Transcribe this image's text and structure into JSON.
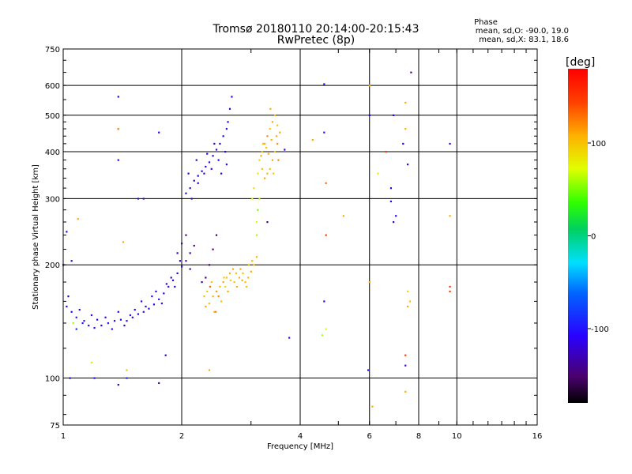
{
  "chart_data": {
    "type": "scatter",
    "title": "Tromsø 20180110 20:14:00-20:15:43",
    "subtitle": "RwPretec (8p)",
    "xlabel": "Frequency [MHz]",
    "ylabel": "Stationary phase Virtual Height [km]",
    "x_scale": "log",
    "y_scale": "log",
    "xlim": [
      1,
      16
    ],
    "ylim": [
      75,
      750
    ],
    "x_ticks": [
      "1",
      "2",
      "4",
      "6",
      "8",
      "10",
      "16"
    ],
    "y_ticks": [
      "75",
      "100",
      "200",
      "300",
      "400",
      "500",
      "600",
      "750"
    ],
    "grid": true,
    "phase_note": {
      "heading": "Phase",
      "line1": "mean, sd,O: -90.0, 19.0",
      "line2": "mean, sd,X:  83.1, 18.6"
    },
    "colorbar": {
      "label": "[deg]",
      "range": [
        -180,
        180
      ],
      "ticks": [
        "100",
        "0",
        "-100"
      ]
    },
    "series": [
      {
        "points": [
          [
            1.02,
            155,
            -110
          ],
          [
            1.05,
            150,
            -105
          ],
          [
            1.08,
            145,
            -100
          ],
          [
            1.12,
            140,
            -100
          ],
          [
            1.16,
            138,
            -110
          ],
          [
            1.2,
            136,
            -105
          ],
          [
            1.25,
            138,
            -110
          ],
          [
            1.3,
            140,
            -100
          ],
          [
            1.35,
            142,
            -105
          ],
          [
            1.4,
            143,
            -110
          ],
          [
            1.45,
            142,
            -100
          ],
          [
            1.5,
            145,
            -105
          ],
          [
            1.55,
            148,
            -110
          ],
          [
            1.6,
            150,
            -100
          ],
          [
            1.65,
            153,
            -105
          ],
          [
            1.7,
            157,
            -110
          ],
          [
            1.75,
            162,
            -100
          ],
          [
            1.8,
            168,
            -110
          ],
          [
            1.85,
            175,
            -120
          ],
          [
            1.9,
            182,
            -115
          ],
          [
            1.95,
            190,
            -125
          ],
          [
            2.0,
            198,
            -120
          ],
          [
            2.05,
            205,
            -130
          ],
          [
            2.1,
            215,
            -135
          ],
          [
            1.03,
            165,
            -120
          ],
          [
            1.1,
            152,
            -110
          ],
          [
            1.18,
            147,
            -100
          ],
          [
            1.28,
            145,
            -105
          ],
          [
            1.38,
            150,
            -110
          ],
          [
            1.48,
            147,
            -105
          ],
          [
            1.58,
            160,
            -110
          ],
          [
            1.68,
            165,
            -105
          ],
          [
            1.78,
            158,
            -100
          ],
          [
            1.88,
            185,
            -120
          ],
          [
            1.98,
            205,
            -130
          ],
          [
            2.0,
            228,
            -140
          ],
          [
            2.05,
            240,
            -150
          ],
          [
            1.08,
            135,
            -90
          ],
          [
            1.13,
            142,
            -95
          ],
          [
            1.22,
            143,
            -110
          ],
          [
            1.33,
            135,
            -105
          ],
          [
            1.43,
            138,
            -110
          ],
          [
            1.52,
            152,
            -110
          ],
          [
            1.62,
            155,
            -120
          ],
          [
            1.72,
            170,
            -115
          ],
          [
            1.83,
            178,
            -125
          ],
          [
            1.92,
            175,
            -120
          ],
          [
            1.95,
            215,
            -130
          ],
          [
            2.1,
            195,
            -140
          ],
          [
            2.15,
            225,
            -150
          ],
          [
            2.05,
            310,
            -120
          ],
          [
            2.1,
            320,
            -125
          ],
          [
            2.15,
            335,
            -130
          ],
          [
            2.2,
            345,
            -120
          ],
          [
            2.25,
            355,
            -125
          ],
          [
            2.3,
            365,
            -110
          ],
          [
            2.35,
            375,
            -115
          ],
          [
            2.4,
            390,
            -120
          ],
          [
            2.45,
            405,
            -110
          ],
          [
            2.5,
            420,
            -115
          ],
          [
            2.55,
            440,
            -120
          ],
          [
            2.6,
            460,
            -110
          ],
          [
            2.62,
            480,
            -115
          ],
          [
            2.65,
            520,
            -120
          ],
          [
            2.68,
            560,
            -110
          ],
          [
            2.12,
            300,
            -125
          ],
          [
            2.2,
            330,
            -115
          ],
          [
            2.28,
            350,
            -120
          ],
          [
            2.38,
            360,
            -110
          ],
          [
            2.48,
            380,
            -115
          ],
          [
            2.52,
            350,
            -125
          ],
          [
            2.58,
            400,
            -120
          ],
          [
            2.6,
            370,
            -115
          ],
          [
            2.42,
            420,
            -120
          ],
          [
            2.32,
            395,
            -110
          ],
          [
            2.18,
            380,
            -130
          ],
          [
            2.08,
            350,
            -125
          ],
          [
            2.25,
            180,
            -130
          ],
          [
            2.3,
            185,
            -140
          ],
          [
            2.35,
            200,
            -145
          ],
          [
            2.4,
            220,
            -150
          ],
          [
            2.45,
            240,
            -155
          ],
          [
            1.0,
            200,
            -150
          ],
          [
            1.02,
            245,
            -120
          ],
          [
            1.38,
            560,
            -120
          ],
          [
            1.38,
            460,
            -120
          ],
          [
            1.38,
            380,
            -110
          ],
          [
            1.55,
            300,
            -120
          ],
          [
            1.6,
            300,
            -130
          ],
          [
            1.75,
            450,
            -110
          ],
          [
            1.2,
            100,
            -100
          ],
          [
            1.38,
            96,
            -130
          ],
          [
            1.45,
            100,
            -90
          ],
          [
            1.75,
            97,
            -140
          ],
          [
            1.82,
            115,
            -120
          ],
          [
            3.3,
            260,
            -140
          ],
          [
            4.6,
            160,
            -110
          ],
          [
            4.6,
            605,
            -110
          ],
          [
            6.0,
            500,
            -110
          ],
          [
            6.8,
            320,
            -110
          ],
          [
            6.8,
            295,
            -110
          ],
          [
            6.9,
            260,
            -110
          ],
          [
            6.9,
            500,
            -110
          ],
          [
            7.0,
            270,
            -110
          ],
          [
            7.4,
            108,
            -120
          ],
          [
            7.5,
            370,
            -120
          ],
          [
            7.65,
            650,
            -140
          ],
          [
            7.3,
            420,
            -110
          ],
          [
            9.6,
            420,
            -110
          ],
          [
            5.95,
            105,
            -110
          ],
          [
            4.6,
            450,
            -100
          ],
          [
            3.65,
            405,
            -110
          ],
          [
            3.75,
            128,
            -100
          ],
          [
            1.04,
            100,
            -120
          ],
          [
            1.05,
            205,
            -130
          ]
        ]
      },
      {
        "points": [
          [
            2.3,
            155,
            110
          ],
          [
            2.35,
            158,
            100
          ],
          [
            2.4,
            165,
            105
          ],
          [
            2.45,
            170,
            115
          ],
          [
            2.5,
            175,
            100
          ],
          [
            2.55,
            180,
            110
          ],
          [
            2.6,
            185,
            100
          ],
          [
            2.65,
            190,
            105
          ],
          [
            2.7,
            195,
            110
          ],
          [
            2.75,
            190,
            100
          ],
          [
            2.8,
            185,
            105
          ],
          [
            2.85,
            182,
            110
          ],
          [
            2.9,
            180,
            100
          ],
          [
            2.95,
            185,
            105
          ],
          [
            3.0,
            192,
            110
          ],
          [
            3.05,
            200,
            100
          ],
          [
            3.1,
            210,
            105
          ],
          [
            2.32,
            170,
            95
          ],
          [
            2.38,
            180,
            100
          ],
          [
            2.42,
            150,
            110
          ],
          [
            2.48,
            165,
            120
          ],
          [
            2.52,
            160,
            100
          ],
          [
            2.58,
            175,
            90
          ],
          [
            2.62,
            170,
            110
          ],
          [
            2.72,
            180,
            100
          ],
          [
            2.82,
            195,
            110
          ],
          [
            2.92,
            175,
            100
          ],
          [
            3.02,
            205,
            105
          ],
          [
            2.28,
            165,
            100
          ],
          [
            2.36,
            175,
            130
          ],
          [
            2.44,
            150,
            120
          ],
          [
            2.56,
            185,
            100
          ],
          [
            2.66,
            182,
            95
          ],
          [
            2.76,
            175,
            110
          ],
          [
            2.86,
            190,
            100
          ],
          [
            2.96,
            200,
            105
          ],
          [
            3.1,
            240,
            60
          ],
          [
            3.1,
            260,
            70
          ],
          [
            3.12,
            280,
            50
          ],
          [
            3.15,
            300,
            60
          ],
          [
            3.12,
            350,
            80
          ],
          [
            3.15,
            380,
            90
          ],
          [
            3.2,
            400,
            100
          ],
          [
            3.25,
            420,
            110
          ],
          [
            3.3,
            440,
            120
          ],
          [
            3.35,
            460,
            100
          ],
          [
            3.4,
            480,
            110
          ],
          [
            3.45,
            500,
            105
          ],
          [
            3.5,
            470,
            100
          ],
          [
            3.55,
            450,
            110
          ],
          [
            3.5,
            420,
            120
          ],
          [
            3.45,
            400,
            100
          ],
          [
            3.4,
            380,
            110
          ],
          [
            3.35,
            360,
            100
          ],
          [
            3.3,
            350,
            105
          ],
          [
            3.25,
            340,
            110
          ],
          [
            3.2,
            360,
            100
          ],
          [
            3.18,
            390,
            110
          ],
          [
            3.28,
            410,
            100
          ],
          [
            3.38,
            430,
            105
          ],
          [
            3.48,
            440,
            110
          ],
          [
            3.52,
            380,
            120
          ],
          [
            3.42,
            350,
            100
          ],
          [
            3.32,
            395,
            110
          ],
          [
            3.22,
            420,
            100
          ],
          [
            3.36,
            520,
            110
          ],
          [
            3.02,
            300,
            80
          ],
          [
            3.05,
            320,
            85
          ],
          [
            4.55,
            130,
            60
          ],
          [
            4.65,
            135,
            70
          ],
          [
            4.65,
            330,
            130
          ],
          [
            4.65,
            240,
            150
          ],
          [
            6.0,
            600,
            110
          ],
          [
            6.0,
            180,
            110
          ],
          [
            6.1,
            84,
            110
          ],
          [
            6.3,
            350,
            80
          ],
          [
            6.6,
            400,
            150
          ],
          [
            7.4,
            540,
            110
          ],
          [
            7.4,
            460,
            110
          ],
          [
            7.5,
            155,
            110
          ],
          [
            7.5,
            170,
            90
          ],
          [
            7.6,
            160,
            100
          ],
          [
            9.6,
            175,
            150
          ],
          [
            9.6,
            170,
            150
          ],
          [
            9.6,
            270,
            110
          ],
          [
            5.15,
            270,
            110
          ],
          [
            1.38,
            460,
            110
          ],
          [
            1.42,
            230,
            110
          ],
          [
            1.45,
            105,
            100
          ],
          [
            2.35,
            105,
            110
          ],
          [
            1.06,
            140,
            60
          ],
          [
            1.09,
            265,
            110
          ],
          [
            1.18,
            110,
            80
          ],
          [
            4.3,
            430,
            110
          ],
          [
            7.4,
            115,
            150
          ],
          [
            7.4,
            92,
            110
          ]
        ]
      }
    ]
  }
}
